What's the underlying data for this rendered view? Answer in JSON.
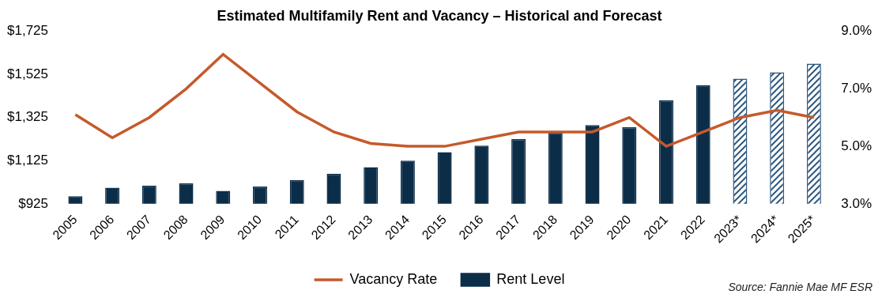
{
  "chart_data": {
    "type": "bar",
    "title": "Estimated Multifamily Rent and Vacancy – Historical and Forecast",
    "annotations": [
      "Source: Fannie Mae MF ESR"
    ],
    "categories": [
      "2005",
      "2006",
      "2007",
      "2008",
      "2009",
      "2010",
      "2011",
      "2012",
      "2013",
      "2014",
      "2015",
      "2016",
      "2017",
      "2018",
      "2019",
      "2020",
      "2021",
      "2022",
      "2023*",
      "2024*",
      "2025*"
    ],
    "series": [
      {
        "name": "Rent Level",
        "type": "bar",
        "color": "#0c2d48",
        "colors": [
          "#0c2d48",
          "#0c2d48",
          "#0c2d48",
          "#0c2d48",
          "#0c2d48",
          "#0c2d48",
          "#0c2d48",
          "#0c2d48",
          "#0c2d48",
          "#0c2d48",
          "#0c2d48",
          "#0c2d48",
          "#0c2d48",
          "#0c2d48",
          "#0c2d48",
          "#0c2d48",
          "#0c2d48",
          "#0c2d48",
          "#2e5a80",
          "#2e5a80",
          "#2e5a80"
        ],
        "values": [
          960,
          1000,
          1010,
          1020,
          985,
          1005,
          1035,
          1065,
          1095,
          1125,
          1165,
          1195,
          1225,
          1255,
          1290,
          1280,
          1405,
          1475,
          1505,
          1535,
          1575
        ]
      },
      {
        "name": "Vacancy Rate",
        "type": "line",
        "axis": "y2",
        "color": "#c55a2b",
        "values": [
          6.1,
          5.3,
          6.0,
          7.0,
          8.2,
          7.2,
          6.2,
          5.5,
          5.1,
          5.0,
          5.0,
          5.25,
          5.5,
          5.5,
          5.5,
          6.0,
          5.0,
          5.5,
          6.0,
          6.25,
          6.0
        ]
      }
    ],
    "ylim": [
      925,
      1725
    ],
    "yticks": [
      {
        "value": 925,
        "label": "$925"
      },
      {
        "value": 1125,
        "label": "$1,125"
      },
      {
        "value": 1325,
        "label": "$1,325"
      },
      {
        "value": 1525,
        "label": "$1,525"
      },
      {
        "value": 1725,
        "label": "$1,725"
      }
    ],
    "y2lim": [
      3,
      9
    ],
    "y2ticks": [
      {
        "value": 3,
        "label": "3.0%"
      },
      {
        "value": 5,
        "label": "5.0%"
      },
      {
        "value": 7,
        "label": "7.0%"
      },
      {
        "value": 9,
        "label": "9.0%"
      }
    ],
    "grid": false,
    "legend": "bottom"
  }
}
